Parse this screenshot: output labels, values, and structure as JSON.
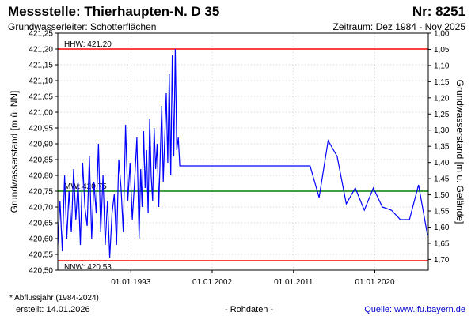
{
  "header": {
    "title": "Messstelle: Thierhaupten-N. D 35",
    "nr": "Nr: 8251",
    "aquifer_label": "Grundwasserleiter:   Schotterflächen",
    "period_label": "Zeitraum: Dez 1984 - Nov 2025"
  },
  "footer": {
    "note": "* Abflussjahr (1984-2024)",
    "created": "erstellt:  14.01.2026",
    "raw": "- Rohdaten -",
    "source": "Quelle:  www.lfu.bayern.de"
  },
  "colors": {
    "series": "#0000ff",
    "hhw": "#ff0000",
    "nnw": "#ff0000",
    "mw": "#008000",
    "grid": "#c0c0c0",
    "axis": "#000000"
  },
  "chart_data": {
    "type": "line",
    "ylabel_left": "Grundwasserstand [m ü. NN]",
    "ylabel_right": "Grundwasserstand [m u. Gelände]",
    "ylim": [
      420.5,
      421.25
    ],
    "ylim_right": [
      1.0,
      1.7
    ],
    "x_range": [
      "1984-12-01",
      "2025-11-30"
    ],
    "x_ticks": [
      "01.01.1993",
      "01.01.2002",
      "01.01.2011",
      "01.01.2020"
    ],
    "y_ticks_left": [
      "420,50",
      "420,55",
      "420,60",
      "420,65",
      "420,70",
      "420,75",
      "420,80",
      "420,85",
      "420,90",
      "420,95",
      "421,00",
      "421,05",
      "421,10",
      "421,15",
      "421,20",
      "421,25"
    ],
    "y_ticks_right": [
      "1,00",
      "1,05",
      "1,10",
      "1,15",
      "1,20",
      "1,25",
      "1,30",
      "1,35",
      "1,40",
      "1,45",
      "1,50",
      "1,55",
      "1,60",
      "1,65",
      "1,70"
    ],
    "grid": true,
    "reference_lines": [
      {
        "label": "HHW: 421.20",
        "value": 421.2,
        "color_key": "hhw"
      },
      {
        "label": "MW: 420.75",
        "value": 420.75,
        "color_key": "mw"
      },
      {
        "label": "NNW: 420.53",
        "value": 420.53,
        "color_key": "nnw"
      }
    ],
    "series": [
      {
        "x": [
          "1984-12-01",
          "1985-03-01",
          "1985-06-01",
          "1985-09-01",
          "1985-12-01",
          "1986-03-01",
          "1986-06-01",
          "1986-09-01",
          "1986-12-01",
          "1987-03-01",
          "1987-06-01",
          "1987-09-01",
          "1987-12-01",
          "1988-03-01",
          "1988-06-01",
          "1988-09-01",
          "1988-12-01",
          "1989-03-01",
          "1989-06-01",
          "1989-09-01",
          "1989-12-01",
          "1990-03-01",
          "1990-06-01",
          "1990-09-01",
          "1990-12-01",
          "1991-03-01",
          "1991-06-01",
          "1991-09-01",
          "1991-12-01",
          "1992-03-01",
          "1992-06-01",
          "1992-09-01",
          "1992-12-01",
          "1993-03-01",
          "1993-06-01",
          "1993-09-01",
          "1993-12-01",
          "1994-02-01",
          "1994-04-01",
          "1994-06-01",
          "1994-08-01",
          "1994-10-01",
          "1994-12-01",
          "1995-02-01",
          "1995-04-01",
          "1995-06-01",
          "1995-08-01",
          "1995-10-01",
          "1995-12-01",
          "1996-02-01",
          "1996-04-01",
          "1996-06-01",
          "1996-08-01",
          "1996-10-01",
          "1996-12-01",
          "1997-02-01",
          "1997-04-01",
          "1997-06-01",
          "1997-08-01",
          "1997-10-01",
          "1997-12-01",
          "1998-02-01",
          "1998-04-01",
          "1998-06-01",
          "2012-11-01",
          "2013-11-01",
          "2014-11-01",
          "2015-11-01",
          "2016-11-01",
          "2017-11-01",
          "2018-11-01",
          "2019-11-01",
          "2020-11-01",
          "2021-11-01",
          "2022-11-01",
          "2023-11-01",
          "2024-11-01",
          "2025-11-01"
        ],
        "y": [
          420.58,
          420.72,
          420.56,
          420.8,
          420.6,
          420.75,
          420.62,
          420.82,
          420.66,
          420.78,
          420.58,
          420.84,
          420.7,
          420.64,
          420.86,
          420.6,
          420.78,
          420.68,
          420.9,
          420.62,
          420.8,
          420.58,
          420.72,
          420.54,
          420.68,
          420.74,
          420.58,
          420.85,
          420.76,
          420.62,
          420.96,
          420.72,
          420.84,
          420.66,
          420.78,
          420.92,
          420.6,
          420.82,
          420.7,
          420.94,
          420.76,
          420.88,
          420.68,
          420.98,
          420.8,
          420.72,
          420.95,
          420.82,
          420.9,
          420.7,
          420.86,
          421.02,
          420.78,
          420.92,
          421.06,
          420.84,
          421.12,
          420.8,
          421.18,
          420.86,
          421.2,
          420.88,
          420.92,
          420.83,
          420.83,
          420.73,
          420.91,
          420.86,
          420.71,
          420.76,
          420.69,
          420.76,
          420.7,
          420.69,
          420.66,
          420.66,
          420.77,
          420.61
        ]
      }
    ]
  }
}
